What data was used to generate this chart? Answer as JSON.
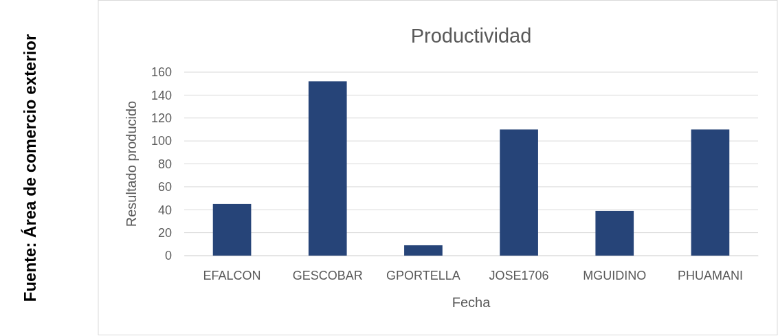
{
  "chart_data": {
    "type": "bar",
    "title": "Productividad",
    "xlabel": "Fecha",
    "ylabel": "Resultado producido",
    "categories": [
      "EFALCON",
      "GESCOBAR",
      "GPORTELLA",
      "JOSE1706",
      "MGUIDINO",
      "PHUAMANI"
    ],
    "values": [
      45,
      152,
      9,
      110,
      39,
      110
    ],
    "color": "#264478",
    "ylim": [
      0,
      160
    ],
    "yticks": [
      0,
      20,
      40,
      60,
      80,
      100,
      120,
      140,
      160
    ],
    "grid": "y",
    "annotations": [
      "Fuente: Área de comercio exterior"
    ]
  }
}
